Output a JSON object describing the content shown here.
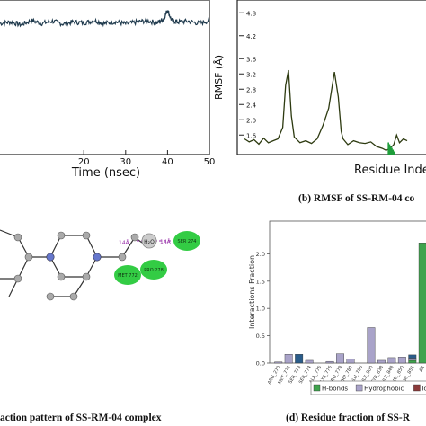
{
  "chart_data": [
    {
      "panel": "a",
      "type": "line",
      "xlabel": "Time (nsec)",
      "x_ticks": [
        "20",
        "30",
        "40",
        "50"
      ],
      "xlim": [
        0,
        50
      ],
      "series": [
        {
          "x": [
            0,
            2.5,
            5,
            7.5,
            10,
            12.5,
            15,
            17.5,
            20,
            22.5,
            25,
            27.5,
            30,
            32.5,
            35,
            37.5,
            39,
            40,
            41,
            42.5,
            45,
            47.5,
            50
          ],
          "y": [
            4.2,
            4.25,
            4.15,
            4.3,
            4.2,
            4.28,
            4.18,
            4.25,
            4.22,
            4.3,
            4.2,
            4.26,
            4.18,
            4.24,
            4.3,
            4.22,
            4.35,
            4.7,
            4.3,
            4.25,
            4.28,
            4.2,
            4.3
          ]
        }
      ],
      "line_color": "#1f3a4d"
    },
    {
      "panel": "b",
      "type": "line",
      "title": "(b) RMSF of SS-RM-04 co",
      "ylabel": "RMSF (Å)",
      "xlabel": "Residue Inde",
      "y_ticks": [
        "1.6",
        "2.0",
        "2.4",
        "2.8",
        "3.2",
        "3.6",
        "4.2",
        "4.8"
      ],
      "series": [
        {
          "x": [
            0,
            25,
            50,
            75,
            100,
            125,
            150,
            175,
            200,
            215,
            230,
            245,
            260,
            290,
            320,
            350,
            380,
            410,
            440,
            470,
            490,
            505,
            515,
            540,
            570,
            600,
            630,
            660,
            690,
            720,
            740,
            760,
            780,
            795,
            810,
            830,
            850
          ],
          "y": [
            1.5,
            1.42,
            1.48,
            1.36,
            1.52,
            1.4,
            1.45,
            1.5,
            1.8,
            2.9,
            3.3,
            2.1,
            1.55,
            1.4,
            1.45,
            1.38,
            1.5,
            1.85,
            2.3,
            3.25,
            2.6,
            1.7,
            1.5,
            1.35,
            1.45,
            1.4,
            1.38,
            1.42,
            1.3,
            1.25,
            1.2,
            1.25,
            1.35,
            1.6,
            1.4,
            1.5,
            1.45
          ]
        }
      ],
      "line_color": "#2d3a10",
      "highlight_color": "#1f9d3a"
    },
    {
      "panel": "c",
      "type": "other",
      "title": "action pattern of SS-RM-04 complex",
      "labels": [
        "14Å",
        "14Å",
        "SER 274",
        "PRO 278",
        "MET 772",
        "H₂O"
      ],
      "colors": {
        "node_green": "#33cc44",
        "bond_purple": "#9933aa",
        "water_gray": "#888888"
      }
    },
    {
      "panel": "d",
      "type": "bar",
      "title": "(d) Residue fraction of SS-R",
      "ylabel": "Interactions Fraction",
      "y_ticks": [
        "0.0",
        "0.5",
        "1.0",
        "1.5",
        "2.0"
      ],
      "ylim": [
        0,
        2.5
      ],
      "categories": [
        "ARG_270",
        "MET_772",
        "SER_773",
        "SER_774",
        "ALA_775",
        "LYS_776",
        "PRO_778",
        "TRP_780",
        "GLU_786",
        "ILE_800",
        "TYR_838",
        "ILE_848",
        "VAL_850",
        "VAL_851",
        "AR"
      ],
      "series": [
        {
          "name": "H-bonds",
          "color": "#3fa34d",
          "values": [
            0,
            0,
            0,
            0,
            0,
            0,
            0,
            0,
            0,
            0,
            0,
            0,
            0,
            0.05,
            2.2
          ]
        },
        {
          "name": "Hydrophobic",
          "color": "#a9a3c9",
          "values": [
            0.02,
            0.16,
            0,
            0.05,
            0,
            0.03,
            0.17,
            0.07,
            0,
            0.65,
            0.05,
            0.1,
            0.11,
            0.04,
            0
          ]
        },
        {
          "name": "Io",
          "color": "#8b3a3a",
          "values": [
            0,
            0,
            0,
            0,
            0,
            0,
            0,
            0,
            0,
            0,
            0,
            0,
            0,
            0,
            0
          ]
        },
        {
          "name": "",
          "color": "#2a5c8a",
          "values": [
            0,
            0,
            0.16,
            0,
            0,
            0,
            0,
            0,
            0,
            0,
            0,
            0,
            0,
            0.06,
            0
          ]
        }
      ]
    }
  ]
}
